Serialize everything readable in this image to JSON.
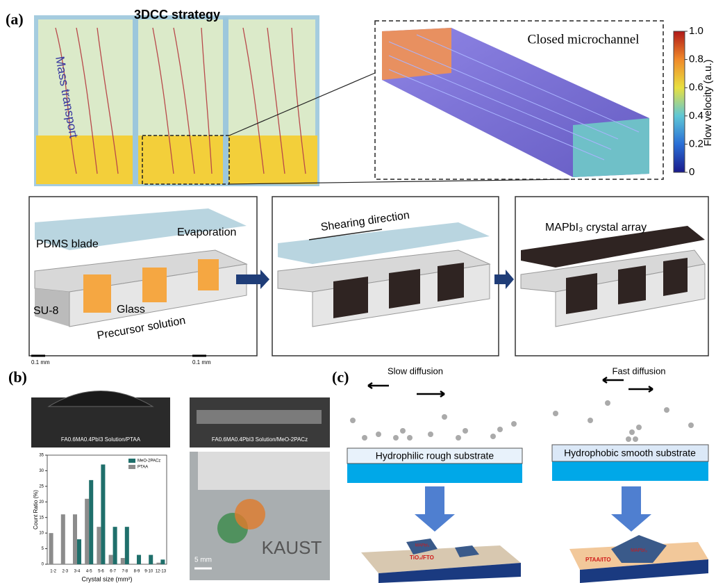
{
  "panel_a": {
    "label": "(a)",
    "title": "3DCC strategy",
    "mass_transport": "Mass transport",
    "closed_microchannel": "Closed microchannel",
    "colorbar": {
      "label": "Flow velocity (a.u.)",
      "ylim": [
        0,
        1
      ],
      "ticks": [
        0,
        0.2,
        0.4,
        0.6,
        0.8,
        {
          "value": 1,
          "label": "1.0"
        }
      ]
    },
    "step1": {
      "pdms_blade": "PDMS blade",
      "evaporation": "Evaporation",
      "su8": "SU-8",
      "glass": "Glass",
      "precursor": "Precursor solution"
    },
    "step2": {
      "shearing": "Shearing direction"
    },
    "step3": {
      "array": "MAPbI₃ crystal array"
    }
  },
  "panel_b": {
    "label": "(b)",
    "scale_left": "0.1 mm",
    "scale_right": "0.1 mm",
    "caption_left": "FA0.6MA0.4PbI3 Solution/PTAA",
    "caption_right": "FA0.6MA0.4PbI3 Solution/MeO-2PACz",
    "photo_logo": "KAUST",
    "photo_scale": "5 mm",
    "chart_data": {
      "type": "bar",
      "xlabel": "Crystal size (mm²)",
      "ylabel": "Count Ratio (%)",
      "categories": [
        "1-2",
        "2-3",
        "3-4",
        "4-5",
        "5-6",
        "6-7",
        "7-8",
        "8-9",
        "9-10",
        "12-13"
      ],
      "series": [
        {
          "name": "MeO-2PACz",
          "color": "#1f6f6b",
          "values": [
            0,
            0,
            8,
            27,
            32,
            12,
            12,
            3,
            3,
            1.5
          ]
        },
        {
          "name": "PTAA",
          "color": "#8c8c8c",
          "values": [
            10,
            16,
            16,
            21,
            12,
            3,
            2,
            0,
            0,
            0.5
          ]
        }
      ],
      "ylim": [
        0,
        35
      ],
      "yticks": [
        0,
        5,
        10,
        15,
        20,
        25,
        30,
        35
      ],
      "grid": false,
      "legend": "upper right"
    }
  },
  "panel_c": {
    "label": "(c)",
    "slow": "Slow diffusion",
    "fast": "Fast diffusion",
    "hydrophilic": "Hydrophilic rough substrate",
    "hydrophobic": "Hydrophobic smooth substrate",
    "tio2": "TiO₂/FTO",
    "ptaa": "PTAA/ITO",
    "crystal_left": "MAPbI₃",
    "crystal_right": "MAPbI₃"
  }
}
